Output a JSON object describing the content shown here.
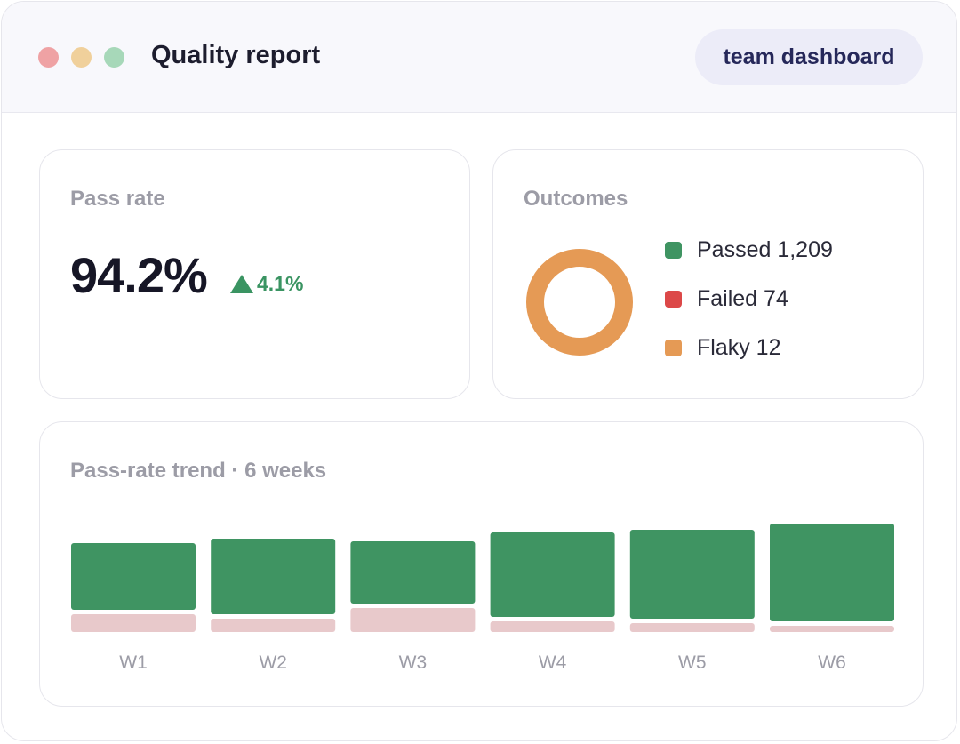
{
  "window": {
    "title": "Quality report",
    "badge": "team dashboard"
  },
  "pass_rate": {
    "label": "Pass rate",
    "value": "94.2%",
    "delta": "4.1%",
    "delta_direction": "up",
    "delta_color": "#3a9462"
  },
  "outcomes": {
    "label": "Outcomes",
    "items": [
      {
        "text": "Passed 1,209",
        "name": "Passed",
        "count": 1209,
        "color": "#3f9462"
      },
      {
        "text": "Failed 74",
        "name": "Failed",
        "count": 74,
        "color": "#dc4848"
      },
      {
        "text": "Flaky 12",
        "name": "Flaky",
        "count": 12,
        "color": "#e59a55"
      }
    ]
  },
  "trend": {
    "label": "Pass-rate trend · 6 weeks"
  },
  "chart_data": {
    "type": "bar",
    "title": "Pass-rate trend · 6 weeks",
    "categories": [
      "W1",
      "W2",
      "W3",
      "W4",
      "W5",
      "W6"
    ],
    "series": [
      {
        "values": [
          75,
          85,
          70,
          95,
          100,
          110
        ],
        "color": "#3f9462"
      },
      {
        "values": [
          20,
          15,
          27,
          12,
          10,
          7
        ],
        "color": "#e8c9cb"
      }
    ],
    "stacked": true,
    "grid": false,
    "legend": "none",
    "y_axis_labels": false
  }
}
